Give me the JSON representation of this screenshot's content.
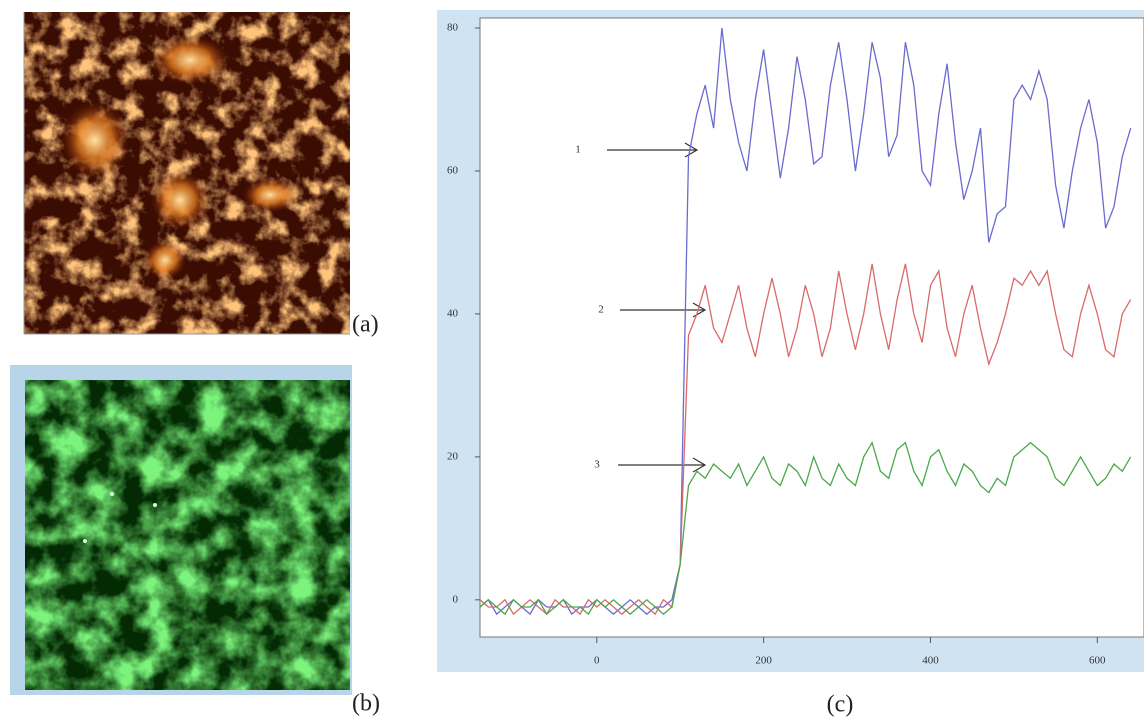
{
  "panels": {
    "a": "(a)",
    "b": "(b)"
  },
  "chart_data": {
    "type": "line",
    "caption": "(c)",
    "x": [
      -140,
      -130,
      -120,
      -110,
      -100,
      -90,
      -80,
      -70,
      -60,
      -50,
      -40,
      -30,
      -20,
      -10,
      0,
      10,
      20,
      30,
      40,
      50,
      60,
      70,
      80,
      90,
      100,
      110,
      120,
      130,
      140,
      150,
      160,
      170,
      180,
      190,
      200,
      210,
      220,
      230,
      240,
      250,
      260,
      270,
      280,
      290,
      300,
      310,
      320,
      330,
      340,
      350,
      360,
      370,
      380,
      390,
      400,
      410,
      420,
      430,
      440,
      450,
      460,
      470,
      480,
      490,
      500,
      510,
      520,
      530,
      540,
      550,
      560,
      570,
      580,
      590,
      600,
      610,
      620,
      630,
      640
    ],
    "series": [
      {
        "color": "#6a6ad0",
        "values": [
          -1,
          0,
          -2,
          -1,
          0,
          -1,
          -2,
          0,
          -1,
          -1,
          0,
          -2,
          -1,
          -1,
          0,
          -1,
          -2,
          -1,
          0,
          -1,
          -2,
          -1,
          -1,
          0,
          5,
          62,
          68,
          72,
          66,
          80,
          70,
          64,
          60,
          70,
          77,
          68,
          59,
          66,
          76,
          70,
          61,
          62,
          72,
          78,
          70,
          60,
          68,
          78,
          73,
          62,
          65,
          78,
          72,
          60,
          58,
          68,
          75,
          64,
          56,
          60,
          66,
          50,
          54,
          55,
          70,
          72,
          70,
          74,
          70,
          58,
          52,
          60,
          66,
          70,
          64,
          52,
          55,
          62,
          66
        ]
      },
      {
        "color": "#d86a6a",
        "values": [
          0,
          -1,
          -1,
          0,
          -2,
          -1,
          0,
          -1,
          -2,
          0,
          -1,
          -1,
          -2,
          0,
          -1,
          0,
          -1,
          -2,
          -1,
          0,
          -1,
          -2,
          0,
          -1,
          5,
          37,
          40,
          44,
          38,
          36,
          40,
          44,
          38,
          34,
          40,
          45,
          40,
          34,
          38,
          44,
          40,
          34,
          38,
          46,
          40,
          35,
          40,
          47,
          40,
          35,
          42,
          47,
          40,
          36,
          44,
          46,
          38,
          34,
          40,
          44,
          38,
          33,
          36,
          40,
          45,
          44,
          46,
          44,
          46,
          40,
          35,
          34,
          40,
          44,
          40,
          35,
          34,
          40,
          42
        ]
      },
      {
        "color": "#4aa84a",
        "values": [
          -1,
          0,
          -1,
          -2,
          0,
          -1,
          -1,
          0,
          -2,
          -1,
          0,
          -1,
          -1,
          -2,
          0,
          -1,
          0,
          -1,
          -2,
          -1,
          0,
          -1,
          -2,
          -1,
          5,
          16,
          18,
          17,
          19,
          18,
          17,
          19,
          16,
          18,
          20,
          17,
          16,
          19,
          18,
          16,
          20,
          17,
          16,
          19,
          17,
          16,
          20,
          22,
          18,
          17,
          21,
          22,
          18,
          16,
          20,
          21,
          18,
          16,
          19,
          18,
          16,
          15,
          17,
          16,
          20,
          21,
          22,
          21,
          20,
          17,
          16,
          18,
          20,
          18,
          16,
          17,
          19,
          18,
          20
        ]
      }
    ],
    "annotations": [
      "1",
      "2",
      "3"
    ],
    "xlim": [
      -140,
      656
    ],
    "ylim": [
      -5.2,
      81.4
    ],
    "xticks": [
      0,
      200,
      400,
      600
    ],
    "yticks": [
      0,
      20,
      40,
      60,
      80
    ]
  }
}
